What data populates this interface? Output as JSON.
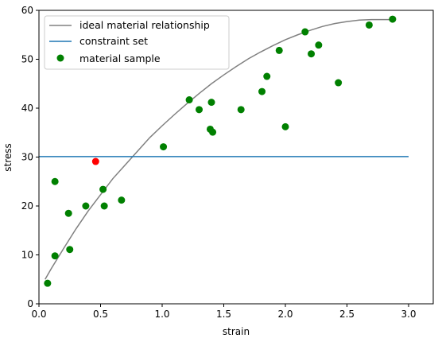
{
  "chart_data": {
    "type": "scatter",
    "xlabel": "strain",
    "ylabel": "stress",
    "xlim": [
      0.0,
      3.2
    ],
    "ylim": [
      0,
      60
    ],
    "xticks": [
      0.0,
      0.5,
      1.0,
      1.5,
      2.0,
      2.5,
      3.0
    ],
    "xtick_labels": [
      "0.0",
      "0.5",
      "1.0",
      "1.5",
      "2.0",
      "2.5",
      "3.0"
    ],
    "yticks": [
      0,
      10,
      20,
      30,
      40,
      50,
      60
    ],
    "ytick_labels": [
      "0",
      "10",
      "20",
      "30",
      "40",
      "50",
      "60"
    ],
    "grid": false,
    "legend_position": "top-left",
    "series": [
      {
        "name": "ideal material relationship",
        "kind": "line",
        "color": "#808080",
        "x": [
          0.05,
          0.1,
          0.2,
          0.3,
          0.4,
          0.5,
          0.6,
          0.7,
          0.8,
          0.9,
          1.0,
          1.1,
          1.2,
          1.3,
          1.4,
          1.5,
          1.6,
          1.7,
          1.8,
          1.9,
          2.0,
          2.1,
          2.2,
          2.3,
          2.4,
          2.5,
          2.6,
          2.7,
          2.8,
          2.88
        ],
        "y": [
          5.0,
          7.2,
          11.3,
          15.3,
          19.0,
          22.3,
          25.6,
          28.4,
          31.2,
          34.0,
          36.4,
          38.7,
          40.9,
          43.0,
          45.0,
          46.8,
          48.5,
          50.1,
          51.5,
          52.8,
          54.0,
          55.0,
          55.9,
          56.7,
          57.3,
          57.7,
          58.0,
          58.1,
          58.1,
          58.1
        ]
      },
      {
        "name": "constraint set",
        "kind": "hline",
        "color": "#1f77b4",
        "x": [
          0.0,
          3.0
        ],
        "y": [
          30.1,
          30.1
        ]
      },
      {
        "name": "material sample",
        "kind": "scatter",
        "color": "#008000",
        "x": [
          0.07,
          0.13,
          0.13,
          0.24,
          0.25,
          0.38,
          0.52,
          0.53,
          0.67,
          1.01,
          1.22,
          1.3,
          1.39,
          1.4,
          1.41,
          1.64,
          1.81,
          1.85,
          1.95,
          2.0,
          2.16,
          2.21,
          2.27,
          2.43,
          2.68,
          2.87
        ],
        "y": [
          4.2,
          9.8,
          25.0,
          18.5,
          11.1,
          20.0,
          23.4,
          20.0,
          21.2,
          32.1,
          41.7,
          39.7,
          35.7,
          41.2,
          35.1,
          39.7,
          43.4,
          46.5,
          51.8,
          36.2,
          55.6,
          51.1,
          52.9,
          45.2,
          57.0,
          58.2
        ]
      },
      {
        "kind": "scatter",
        "color": "#ff0000",
        "x": [
          0.46
        ],
        "y": [
          29.1
        ]
      }
    ]
  }
}
